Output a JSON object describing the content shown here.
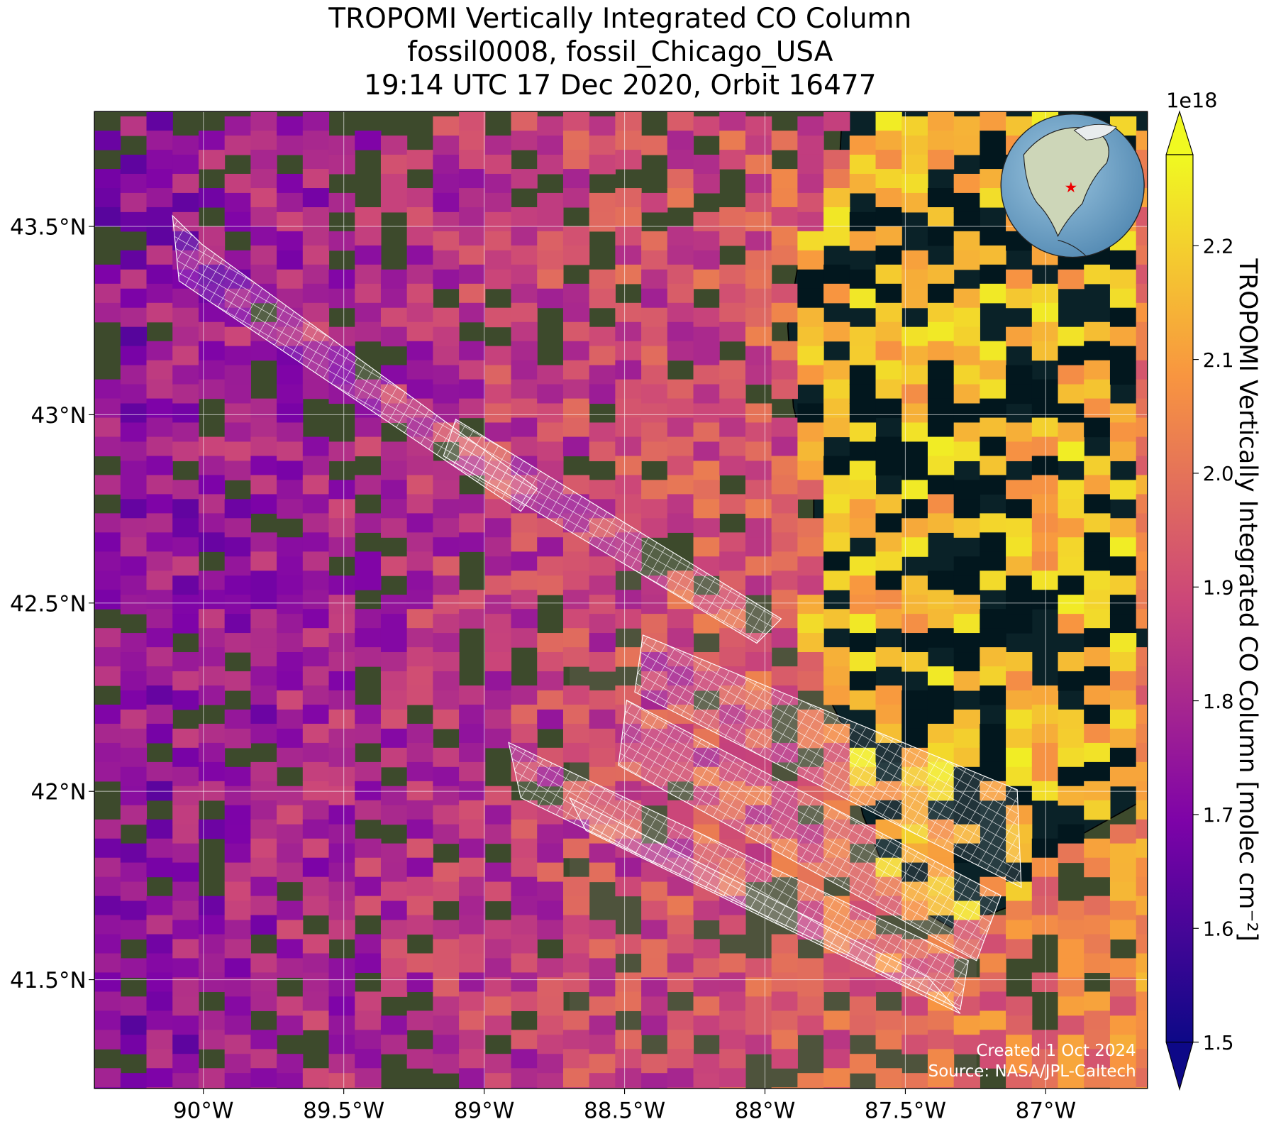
{
  "chart_data": {
    "type": "map",
    "title": [
      "TROPOMI Vertically Integrated CO Column",
      "fossil0008, fossil_Chicago_USA",
      "19:14 UTC 17 Dec 2020, Orbit 16477"
    ],
    "xlim": [
      -90.388,
      -86.638
    ],
    "ylim": [
      41.211,
      43.805
    ],
    "xticks": [
      {
        "value": -90,
        "label": "90°W"
      },
      {
        "value": -89.5,
        "label": "89.5°W"
      },
      {
        "value": -89,
        "label": "89°W"
      },
      {
        "value": -88.5,
        "label": "88.5°W"
      },
      {
        "value": -88,
        "label": "88°W"
      },
      {
        "value": -87.5,
        "label": "87.5°W"
      },
      {
        "value": -87,
        "label": "87°W"
      }
    ],
    "yticks": [
      {
        "value": 41.5,
        "label": "41.5°N"
      },
      {
        "value": 42,
        "label": "42°N"
      },
      {
        "value": 42.5,
        "label": "42.5°N"
      },
      {
        "value": 43,
        "label": "43°N"
      },
      {
        "value": 43.5,
        "label": "43.5°N"
      }
    ],
    "grid": true,
    "site": {
      "lon": -87.658,
      "lat": 41.885,
      "color": "#ff0000"
    },
    "colorbar": {
      "label": "TROPOMI Vertically Integrated CO Column [molec cm⁻²]",
      "offset_label": "1e18",
      "clim": [
        1.5,
        2.28
      ],
      "ticks": [
        1.5,
        1.6,
        1.7,
        1.8,
        1.9,
        {
          "value": 2,
          "label": "2.0"
        },
        2.1,
        2.2
      ]
    },
    "credits": [
      "Created 1 Oct 2024",
      "Source: NASA/JPL-Caltech"
    ]
  }
}
